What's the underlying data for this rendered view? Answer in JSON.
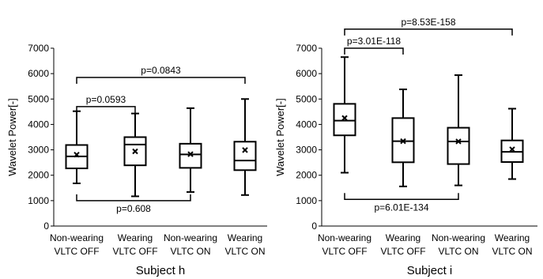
{
  "chart_data": [
    {
      "type": "boxplot",
      "xlabel": "Subject h",
      "ylabel": "Wavelet Power[-]",
      "ylim": [
        0,
        7000
      ],
      "yticks": [
        0,
        1000,
        2000,
        3000,
        4000,
        5000,
        6000,
        7000
      ],
      "categories": [
        [
          "Non-wearing",
          "VLTC OFF"
        ],
        [
          "Wearing",
          "VLTC OFF"
        ],
        [
          "Non-wearing",
          "VLTC ON"
        ],
        [
          "Wearing",
          "VLTC ON"
        ]
      ],
      "boxes": [
        {
          "min": 1680,
          "q1": 2270,
          "median": 2740,
          "q3": 3190,
          "max": 4520,
          "mean": 2810
        },
        {
          "min": 1170,
          "q1": 2390,
          "median": 3210,
          "q3": 3500,
          "max": 4430,
          "mean": 2940
        },
        {
          "min": 1340,
          "q1": 2290,
          "median": 2820,
          "q3": 3240,
          "max": 4640,
          "mean": 2830
        },
        {
          "min": 1220,
          "q1": 2200,
          "median": 2580,
          "q3": 3320,
          "max": 5000,
          "mean": 2990
        }
      ],
      "comparisons": [
        {
          "from": 0,
          "to": 1,
          "label": "p=0.0593",
          "side": "top",
          "level": 4700
        },
        {
          "from": 0,
          "to": 3,
          "label": "p=0.0843",
          "side": "top",
          "level": 5850
        },
        {
          "from": 0,
          "to": 2,
          "label": "p=0.608",
          "side": "bottom",
          "level": 1000
        }
      ]
    },
    {
      "type": "boxplot",
      "xlabel": "Subject i",
      "ylabel": "Wavelet Power[-]",
      "ylim": [
        0,
        7000
      ],
      "yticks": [
        0,
        1000,
        2000,
        3000,
        4000,
        5000,
        6000,
        7000
      ],
      "categories": [
        [
          "Non-wearing",
          "VLTC OFF"
        ],
        [
          "Wearing",
          "VLTC OFF"
        ],
        [
          "Non-wearing",
          "VLTC ON"
        ],
        [
          "Wearing",
          "VLTC ON"
        ]
      ],
      "boxes": [
        {
          "min": 2100,
          "q1": 3570,
          "median": 4150,
          "q3": 4810,
          "max": 6650,
          "mean": 4250
        },
        {
          "min": 1560,
          "q1": 2510,
          "median": 3340,
          "q3": 4250,
          "max": 5380,
          "mean": 3340
        },
        {
          "min": 1600,
          "q1": 2440,
          "median": 3330,
          "q3": 3870,
          "max": 5940,
          "mean": 3330
        },
        {
          "min": 1850,
          "q1": 2520,
          "median": 2920,
          "q3": 3370,
          "max": 4620,
          "mean": 3020
        }
      ],
      "comparisons": [
        {
          "from": 0,
          "to": 1,
          "label": "p=3.01E-118",
          "side": "top",
          "level": 7000
        },
        {
          "from": 0,
          "to": 3,
          "label": "p=8.53E-158",
          "side": "top",
          "level": 7750
        },
        {
          "from": 0,
          "to": 2,
          "label": "p=6.01E-134",
          "side": "bottom",
          "level": 1050
        }
      ]
    }
  ]
}
